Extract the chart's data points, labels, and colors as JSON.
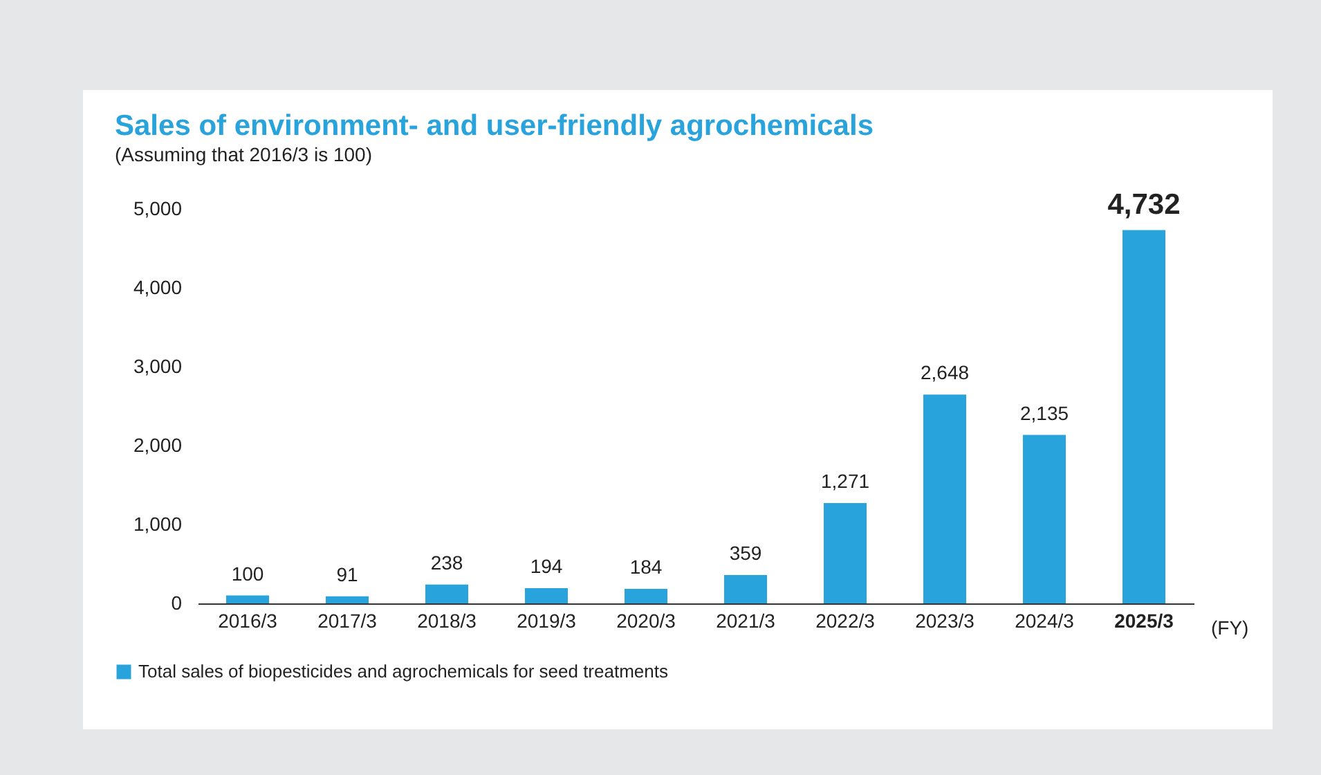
{
  "chart_data": {
    "type": "bar",
    "title": "Sales of environment- and user-friendly agrochemicals",
    "subtitle": "(Assuming that 2016/3 is 100)",
    "xlabel": "(FY)",
    "categories": [
      "2016/3",
      "2017/3",
      "2018/3",
      "2019/3",
      "2020/3",
      "2021/3",
      "2022/3",
      "2023/3",
      "2024/3",
      "2025/3"
    ],
    "series": [
      {
        "name": "Total sales of biopesticides and agrochemicals for seed treatments",
        "color": "#29a3dc",
        "values": [
          100,
          91,
          238,
          194,
          184,
          359,
          1271,
          2648,
          2135,
          4732
        ]
      }
    ],
    "value_labels": [
      "100",
      "91",
      "238",
      "194",
      "184",
      "359",
      "1,271",
      "2,648",
      "2,135",
      "4,732"
    ],
    "ylim": [
      0,
      5000
    ],
    "yticks": [
      0,
      {
        "value": 1000,
        "label": "1,000"
      },
      {
        "value": 2000,
        "label": "2,000"
      },
      {
        "value": 3000,
        "label": "3,000"
      },
      {
        "value": 4000,
        "label": "4,000"
      },
      {
        "value": 5000,
        "label": "5,000"
      }
    ],
    "grid": false,
    "legend": "bottom left"
  }
}
